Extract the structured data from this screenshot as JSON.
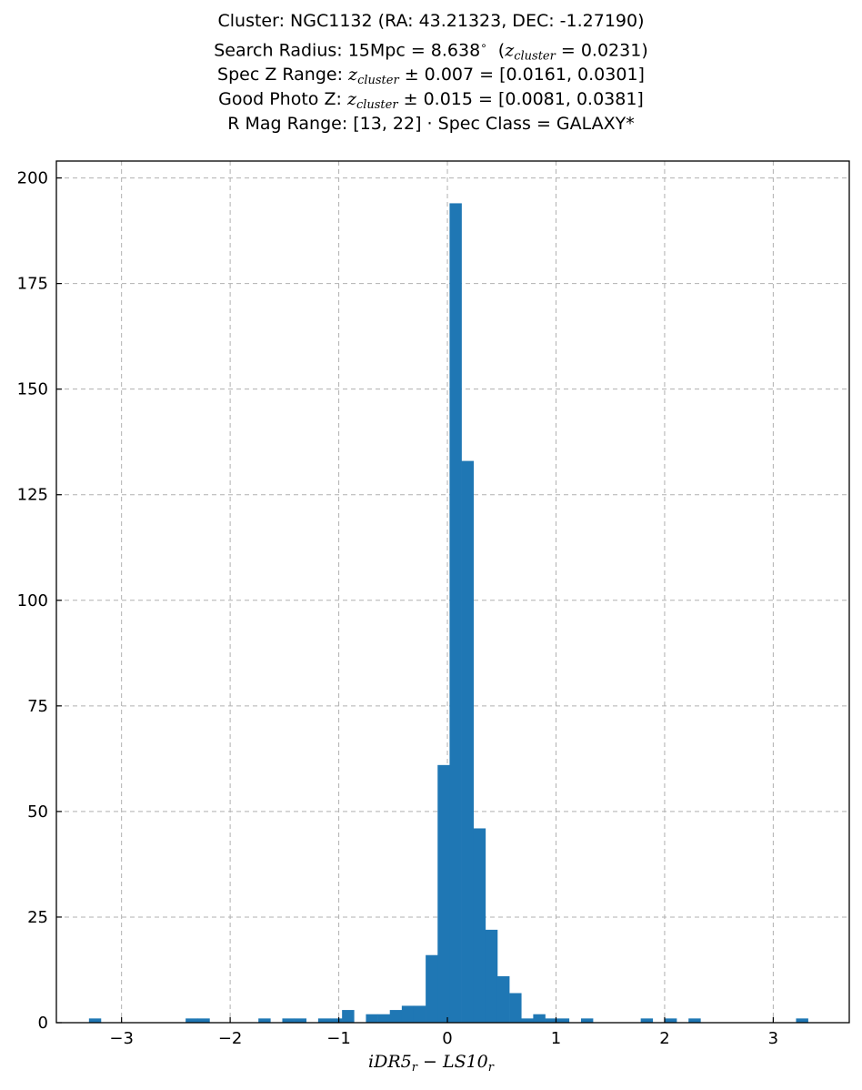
{
  "title": {
    "line1": "Cluster: NGC1132 (RA: 43.21323, DEC: -1.27190)",
    "line2_prefix": "Search Radius: 15Mpc = 8.638",
    "line2_z": "z",
    "line2_sub": "cluster",
    "line2_suffix": " = 0.0231)",
    "line3_prefix": "Spec Z Range: ",
    "line3_z": "z",
    "line3_sub": "cluster",
    "line3_suffix": " ± 0.007 = [0.0161, 0.0301]",
    "line4_prefix": "Good Photo Z: ",
    "line4_z": "z",
    "line4_sub": "cluster",
    "line4_suffix": " ± 0.015 = [0.0081, 0.0381]",
    "line5": "R Mag Range: [13, 22] · Spec Class = GALAXY*"
  },
  "xlabel": {
    "a": "iDR5",
    "a_sub": "r",
    "b": " − LS10",
    "b_sub": "r"
  },
  "colors": {
    "bar": "#1f77b4",
    "grid": "#b0b0b0"
  },
  "chart_data": {
    "type": "bar",
    "bin_width": 0.11,
    "xlim": [
      -3.6,
      3.7
    ],
    "ylim": [
      0,
      204
    ],
    "xticks": [
      -3,
      -2,
      -1,
      0,
      1,
      2,
      3
    ],
    "xtick_labels": [
      "−3",
      "−2",
      "−1",
      "0",
      "1",
      "2",
      "3"
    ],
    "yticks": [
      0,
      25,
      50,
      75,
      100,
      125,
      150,
      175,
      200
    ],
    "grid": true,
    "bins": [
      {
        "x": -3.3,
        "count": 1
      },
      {
        "x": -2.41,
        "count": 1
      },
      {
        "x": -2.3,
        "count": 1
      },
      {
        "x": -1.74,
        "count": 1
      },
      {
        "x": -1.52,
        "count": 1
      },
      {
        "x": -1.41,
        "count": 1
      },
      {
        "x": -1.19,
        "count": 1
      },
      {
        "x": -1.08,
        "count": 1
      },
      {
        "x": -0.97,
        "count": 3
      },
      {
        "x": -0.75,
        "count": 2
      },
      {
        "x": -0.64,
        "count": 2
      },
      {
        "x": -0.53,
        "count": 3
      },
      {
        "x": -0.42,
        "count": 4
      },
      {
        "x": -0.31,
        "count": 4
      },
      {
        "x": -0.2,
        "count": 16
      },
      {
        "x": -0.09,
        "count": 61
      },
      {
        "x": 0.02,
        "count": 194
      },
      {
        "x": 0.13,
        "count": 133
      },
      {
        "x": 0.24,
        "count": 46
      },
      {
        "x": 0.35,
        "count": 22
      },
      {
        "x": 0.46,
        "count": 11
      },
      {
        "x": 0.57,
        "count": 7
      },
      {
        "x": 0.68,
        "count": 1
      },
      {
        "x": 0.79,
        "count": 2
      },
      {
        "x": 0.9,
        "count": 1
      },
      {
        "x": 1.01,
        "count": 1
      },
      {
        "x": 1.23,
        "count": 1
      },
      {
        "x": 1.78,
        "count": 1
      },
      {
        "x": 2.0,
        "count": 1
      },
      {
        "x": 2.22,
        "count": 1
      },
      {
        "x": 3.21,
        "count": 1
      }
    ]
  }
}
